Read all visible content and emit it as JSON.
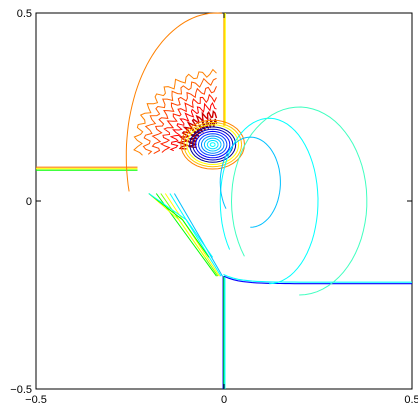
{
  "chart_data": {
    "type": "contour",
    "title": "",
    "xlabel": "",
    "ylabel": "",
    "xlim": [
      -0.5,
      0.5
    ],
    "ylim": [
      -0.5,
      0.5
    ],
    "xticks": [
      {
        "value": -0.5,
        "label": "−0.5"
      },
      {
        "value": 0,
        "label": "0"
      },
      {
        "value": 0.5,
        "label": "0.5"
      }
    ],
    "yticks": [
      {
        "value": -0.5,
        "label": "−0.5"
      },
      {
        "value": 0,
        "label": "0"
      },
      {
        "value": 0.5,
        "label": "0.5"
      }
    ],
    "grid": false,
    "colormap": "jet",
    "colormap_stops": [
      "#00008f",
      "#0000ff",
      "#00ffff",
      "#ffff00",
      "#ff0000",
      "#800000"
    ],
    "features": {
      "vertical_shock": {
        "x": 0,
        "y_range": [
          -0.5,
          -0.2
        ],
        "colors": [
          "#0000ff",
          "#00ff00",
          "#00ffff"
        ]
      },
      "horizontal_shock_left": {
        "y": 0.09,
        "x_range": [
          -0.5,
          -0.23
        ],
        "colors": [
          "#ff8000",
          "#ffff00",
          "#00ff00"
        ]
      },
      "vertical_top_line": {
        "x": 0,
        "y_range": [
          0.2,
          0.5
        ],
        "colors": [
          "#ffa500",
          "#ffff00"
        ]
      },
      "right_shock": {
        "x_range": [
          0,
          0.5
        ],
        "y_approx": -0.22,
        "colors": [
          "#0000ff",
          "#00ffff"
        ]
      },
      "vortex_center": {
        "x": -0.03,
        "y": 0.15
      }
    }
  }
}
